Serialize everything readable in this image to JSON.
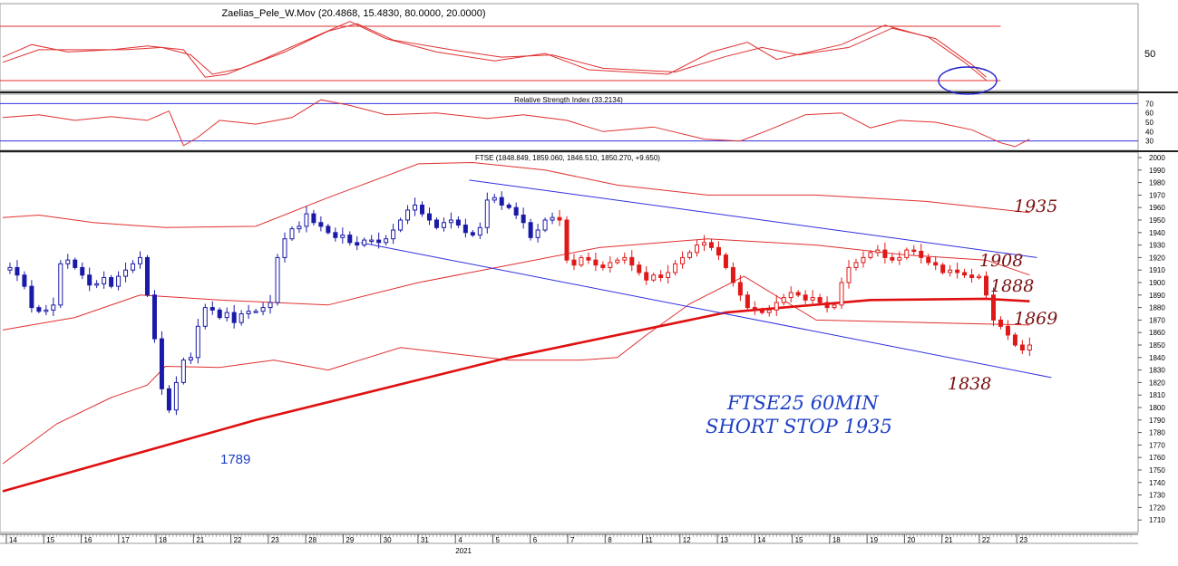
{
  "panels": {
    "osc_title": "Zaelias_Pele_W.Mov (20.4868, 15.4830, 80.0000, 20.0000)",
    "osc_axis_label": "50",
    "rsi_title": "Relative Strength Index (33.2134)",
    "rsi_axis_labels": [
      "70",
      "60",
      "50",
      "40",
      "30"
    ],
    "price_title": "FTSE (1848.849, 1859.060, 1846.510, 1850.270, +9.650)"
  },
  "annotations": {
    "n1935": "1935",
    "n1908": "1908",
    "n1888": "1888",
    "n1869": "1869",
    "n1838": "1838",
    "n1789": "1789",
    "note_line1": "FTSE25  60MIN",
    "note_line2": "SHORT STOP 1935"
  },
  "colors": {
    "up": "#1a1aa8",
    "down": "#e01818",
    "band": "#e03030",
    "ma": "#e01010",
    "channel": "#3030e0",
    "note": "#1d3fc4",
    "hand": "#7a1010"
  },
  "chart_data": {
    "type": "candlestick",
    "instrument": "FTSE",
    "timeframe": "60MIN",
    "year_label": "2021",
    "x_day_labels": [
      "14",
      "15",
      "16",
      "17",
      "18",
      "21",
      "22",
      "23",
      "28",
      "29",
      "30",
      "31",
      "4",
      "5",
      "6",
      "7",
      "8",
      "11",
      "12",
      "13",
      "14",
      "15",
      "18",
      "19",
      "20",
      "21",
      "22",
      "23"
    ],
    "ylim": [
      1700,
      2000
    ],
    "y_ticks": [
      1710,
      1720,
      1730,
      1740,
      1750,
      1760,
      1770,
      1780,
      1790,
      1800,
      1810,
      1820,
      1830,
      1840,
      1850,
      1860,
      1870,
      1880,
      1890,
      1900,
      1910,
      1920,
      1930,
      1940,
      1950,
      1960,
      1970,
      1980,
      1990,
      2000
    ],
    "close_path": [
      [
        0,
        1910
      ],
      [
        2,
        1912
      ],
      [
        4,
        1906
      ],
      [
        6,
        1897
      ],
      [
        8,
        1880
      ],
      [
        10,
        1877
      ],
      [
        12,
        1878
      ],
      [
        14,
        1882
      ],
      [
        16,
        1915
      ],
      [
        18,
        1918
      ],
      [
        20,
        1912
      ],
      [
        22,
        1906
      ],
      [
        24,
        1898
      ],
      [
        26,
        1899
      ],
      [
        28,
        1904
      ],
      [
        30,
        1897
      ],
      [
        32,
        1905
      ],
      [
        34,
        1910
      ],
      [
        36,
        1915
      ],
      [
        38,
        1920
      ],
      [
        40,
        1890
      ],
      [
        42,
        1855
      ],
      [
        44,
        1815
      ],
      [
        46,
        1798
      ],
      [
        48,
        1820
      ],
      [
        50,
        1838
      ],
      [
        52,
        1840
      ],
      [
        54,
        1865
      ],
      [
        56,
        1880
      ],
      [
        58,
        1878
      ],
      [
        60,
        1872
      ],
      [
        62,
        1876
      ],
      [
        64,
        1868
      ],
      [
        66,
        1875
      ],
      [
        68,
        1877
      ],
      [
        70,
        1877
      ],
      [
        72,
        1880
      ],
      [
        74,
        1884
      ],
      [
        76,
        1920
      ],
      [
        78,
        1935
      ],
      [
        80,
        1943
      ],
      [
        82,
        1945
      ],
      [
        84,
        1955
      ],
      [
        86,
        1948
      ],
      [
        88,
        1945
      ],
      [
        90,
        1940
      ],
      [
        92,
        1936
      ],
      [
        94,
        1938
      ],
      [
        96,
        1932
      ],
      [
        98,
        1930
      ],
      [
        100,
        1934
      ],
      [
        102,
        1934
      ],
      [
        104,
        1932
      ],
      [
        106,
        1935
      ],
      [
        108,
        1942
      ],
      [
        110,
        1950
      ],
      [
        112,
        1958
      ],
      [
        114,
        1962
      ],
      [
        116,
        1955
      ],
      [
        118,
        1950
      ],
      [
        120,
        1944
      ],
      [
        122,
        1948
      ],
      [
        124,
        1950
      ],
      [
        126,
        1946
      ],
      [
        128,
        1940
      ],
      [
        130,
        1938
      ],
      [
        132,
        1944
      ],
      [
        134,
        1966
      ],
      [
        136,
        1968
      ],
      [
        138,
        1962
      ],
      [
        140,
        1960
      ],
      [
        142,
        1954
      ],
      [
        144,
        1948
      ],
      [
        146,
        1936
      ],
      [
        148,
        1942
      ],
      [
        150,
        1950
      ],
      [
        152,
        1952
      ],
      [
        154,
        1950
      ],
      [
        156,
        1918
      ],
      [
        158,
        1914
      ],
      [
        160,
        1920
      ],
      [
        162,
        1918
      ],
      [
        164,
        1914
      ],
      [
        166,
        1912
      ],
      [
        168,
        1916
      ],
      [
        170,
        1918
      ],
      [
        172,
        1920
      ],
      [
        174,
        1914
      ],
      [
        176,
        1908
      ],
      [
        178,
        1902
      ],
      [
        180,
        1906
      ],
      [
        182,
        1904
      ],
      [
        184,
        1908
      ],
      [
        186,
        1915
      ],
      [
        188,
        1920
      ],
      [
        190,
        1924
      ],
      [
        192,
        1930
      ],
      [
        194,
        1932
      ],
      [
        196,
        1928
      ],
      [
        198,
        1922
      ],
      [
        200,
        1912
      ],
      [
        202,
        1900
      ],
      [
        204,
        1890
      ],
      [
        206,
        1880
      ],
      [
        208,
        1878
      ],
      [
        210,
        1876
      ],
      [
        212,
        1878
      ],
      [
        214,
        1884
      ],
      [
        216,
        1888
      ],
      [
        218,
        1892
      ],
      [
        220,
        1890
      ],
      [
        222,
        1886
      ],
      [
        224,
        1888
      ],
      [
        226,
        1884
      ],
      [
        228,
        1880
      ],
      [
        230,
        1882
      ],
      [
        232,
        1900
      ],
      [
        234,
        1912
      ],
      [
        236,
        1916
      ],
      [
        238,
        1920
      ],
      [
        240,
        1924
      ],
      [
        242,
        1926
      ],
      [
        244,
        1920
      ],
      [
        246,
        1918
      ],
      [
        248,
        1920
      ],
      [
        250,
        1926
      ],
      [
        252,
        1925
      ],
      [
        254,
        1920
      ],
      [
        256,
        1916
      ],
      [
        258,
        1914
      ],
      [
        260,
        1908
      ],
      [
        262,
        1910
      ],
      [
        264,
        1908
      ],
      [
        266,
        1906
      ],
      [
        268,
        1904
      ],
      [
        270,
        1905
      ],
      [
        272,
        1890
      ],
      [
        274,
        1870
      ],
      [
        276,
        1865
      ],
      [
        278,
        1858
      ],
      [
        280,
        1850
      ],
      [
        282,
        1846
      ],
      [
        284,
        1850
      ]
    ],
    "candle_count": 142,
    "ma_path": [
      [
        0,
        1733
      ],
      [
        70,
        1790
      ],
      [
        140,
        1840
      ],
      [
        200,
        1876
      ],
      [
        240,
        1886
      ],
      [
        272,
        1887
      ],
      [
        284,
        1885
      ]
    ],
    "upper_band_path": [
      [
        0,
        1952
      ],
      [
        10,
        1954
      ],
      [
        25,
        1948
      ],
      [
        45,
        1944
      ],
      [
        70,
        1945
      ],
      [
        90,
        1968
      ],
      [
        115,
        1995
      ],
      [
        130,
        1996
      ],
      [
        150,
        1990
      ],
      [
        170,
        1978
      ],
      [
        195,
        1970
      ],
      [
        225,
        1970
      ],
      [
        255,
        1965
      ],
      [
        284,
        1956
      ]
    ],
    "lower_band_path": [
      [
        0,
        1755
      ],
      [
        15,
        1787
      ],
      [
        30,
        1808
      ],
      [
        40,
        1818
      ],
      [
        45,
        1833
      ],
      [
        60,
        1832
      ],
      [
        75,
        1838
      ],
      [
        90,
        1830
      ],
      [
        110,
        1848
      ],
      [
        140,
        1838
      ],
      [
        160,
        1838
      ],
      [
        170,
        1840
      ],
      [
        178,
        1858
      ],
      [
        190,
        1883
      ],
      [
        205,
        1905
      ],
      [
        225,
        1870
      ],
      [
        255,
        1868
      ],
      [
        284,
        1866
      ]
    ],
    "mid_band_path": [
      [
        0,
        1862
      ],
      [
        20,
        1872
      ],
      [
        38,
        1890
      ],
      [
        60,
        1886
      ],
      [
        90,
        1882
      ],
      [
        115,
        1900
      ],
      [
        140,
        1914
      ],
      [
        165,
        1928
      ],
      [
        195,
        1935
      ],
      [
        225,
        1930
      ],
      [
        250,
        1922
      ],
      [
        272,
        1918
      ],
      [
        284,
        1906
      ]
    ],
    "channel_upper": [
      [
        129,
        1982
      ],
      [
        286,
        1920
      ]
    ],
    "channel_lower": [
      [
        99,
        1932
      ],
      [
        290,
        1824
      ]
    ],
    "support_resistance": [
      1935,
      1908,
      1888,
      1869,
      1838,
      1789
    ],
    "x_extent": 312
  },
  "osc_data": {
    "ylim": [
      0,
      100
    ],
    "upper_level": 80,
    "lower_level": 20,
    "fast": [
      [
        0,
        45
      ],
      [
        8,
        62
      ],
      [
        18,
        52
      ],
      [
        30,
        55
      ],
      [
        40,
        60
      ],
      [
        50,
        55
      ],
      [
        56,
        18
      ],
      [
        62,
        22
      ],
      [
        72,
        42
      ],
      [
        86,
        72
      ],
      [
        96,
        93
      ],
      [
        106,
        70
      ],
      [
        120,
        52
      ],
      [
        136,
        40
      ],
      [
        150,
        50
      ],
      [
        162,
        28
      ],
      [
        184,
        22
      ],
      [
        196,
        52
      ],
      [
        206,
        65
      ],
      [
        214,
        42
      ],
      [
        232,
        62
      ],
      [
        244,
        88
      ],
      [
        256,
        72
      ],
      [
        266,
        38
      ],
      [
        272,
        14
      ]
    ],
    "slow": [
      [
        0,
        38
      ],
      [
        10,
        55
      ],
      [
        22,
        55
      ],
      [
        34,
        55
      ],
      [
        44,
        58
      ],
      [
        52,
        48
      ],
      [
        58,
        22
      ],
      [
        66,
        30
      ],
      [
        78,
        52
      ],
      [
        90,
        80
      ],
      [
        98,
        90
      ],
      [
        108,
        68
      ],
      [
        124,
        55
      ],
      [
        138,
        45
      ],
      [
        152,
        48
      ],
      [
        166,
        30
      ],
      [
        186,
        25
      ],
      [
        200,
        46
      ],
      [
        210,
        58
      ],
      [
        220,
        48
      ],
      [
        234,
        58
      ],
      [
        246,
        84
      ],
      [
        258,
        70
      ],
      [
        268,
        35
      ],
      [
        272,
        18
      ]
    ],
    "highlight_ellipse": true
  },
  "rsi_data": {
    "ylim": [
      20,
      80
    ],
    "levels": [
      70,
      30
    ],
    "ticks": [
      70,
      60,
      50,
      40,
      30
    ],
    "value": 33.2134,
    "path": [
      [
        0,
        55
      ],
      [
        10,
        58
      ],
      [
        20,
        52
      ],
      [
        30,
        56
      ],
      [
        40,
        52
      ],
      [
        46,
        62
      ],
      [
        50,
        25
      ],
      [
        54,
        34
      ],
      [
        60,
        52
      ],
      [
        70,
        48
      ],
      [
        80,
        55
      ],
      [
        88,
        74
      ],
      [
        96,
        68
      ],
      [
        106,
        58
      ],
      [
        120,
        60
      ],
      [
        134,
        54
      ],
      [
        144,
        58
      ],
      [
        156,
        52
      ],
      [
        166,
        40
      ],
      [
        180,
        45
      ],
      [
        194,
        32
      ],
      [
        204,
        30
      ],
      [
        212,
        42
      ],
      [
        222,
        58
      ],
      [
        232,
        60
      ],
      [
        240,
        44
      ],
      [
        248,
        52
      ],
      [
        258,
        50
      ],
      [
        268,
        42
      ],
      [
        276,
        28
      ],
      [
        280,
        24
      ],
      [
        284,
        32
      ]
    ]
  }
}
